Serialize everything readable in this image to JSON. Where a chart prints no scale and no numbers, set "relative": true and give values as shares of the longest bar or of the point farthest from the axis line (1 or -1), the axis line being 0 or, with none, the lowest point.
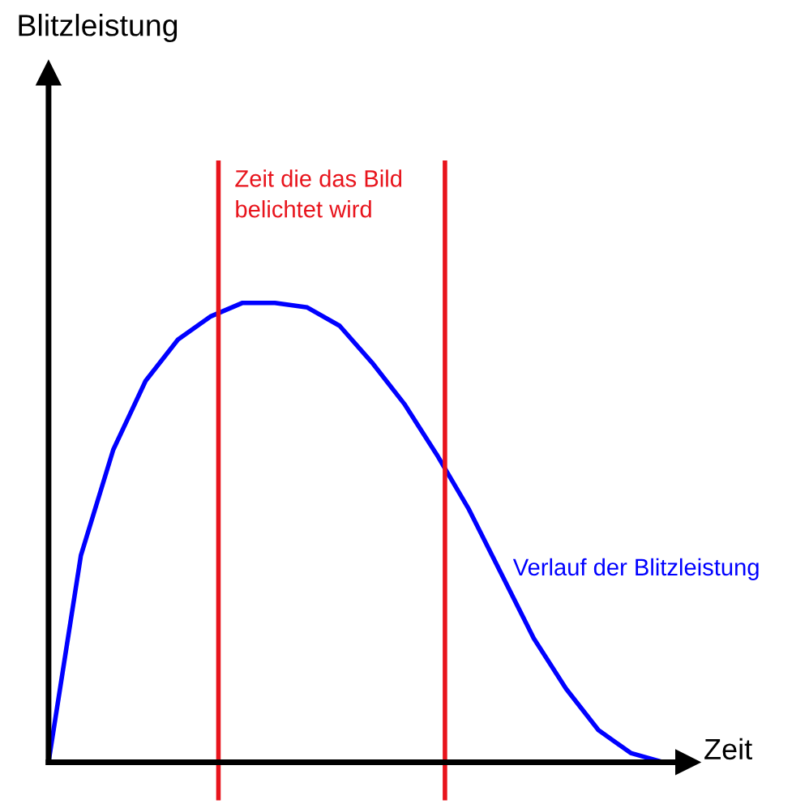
{
  "chart_data": {
    "type": "line",
    "relative": true,
    "xlabel": "Zeit",
    "categories": [
      null,
      null,
      null,
      null,
      null,
      null,
      null,
      null,
      null,
      null,
      null,
      null,
      null,
      null,
      null,
      null,
      null,
      null,
      null,
      null
    ],
    "series": [
      {
        "color": "#0000ff",
        "values": [
          0,
          0.45,
          0.68,
          0.83,
          0.92,
          0.97,
          1.0,
          1.0,
          0.99,
          0.95,
          0.87,
          0.78,
          0.67,
          0.55,
          0.41,
          0.27,
          0.16,
          0.07,
          0.02,
          0
        ]
      }
    ],
    "annotations": [
      "Zeit die das Bild\nbelichtet wird",
      "Verlauf der Blitzleistung",
      "Blitzleistung"
    ],
    "marker": "none",
    "line_style": "solid",
    "grid": false,
    "legend": false
  }
}
